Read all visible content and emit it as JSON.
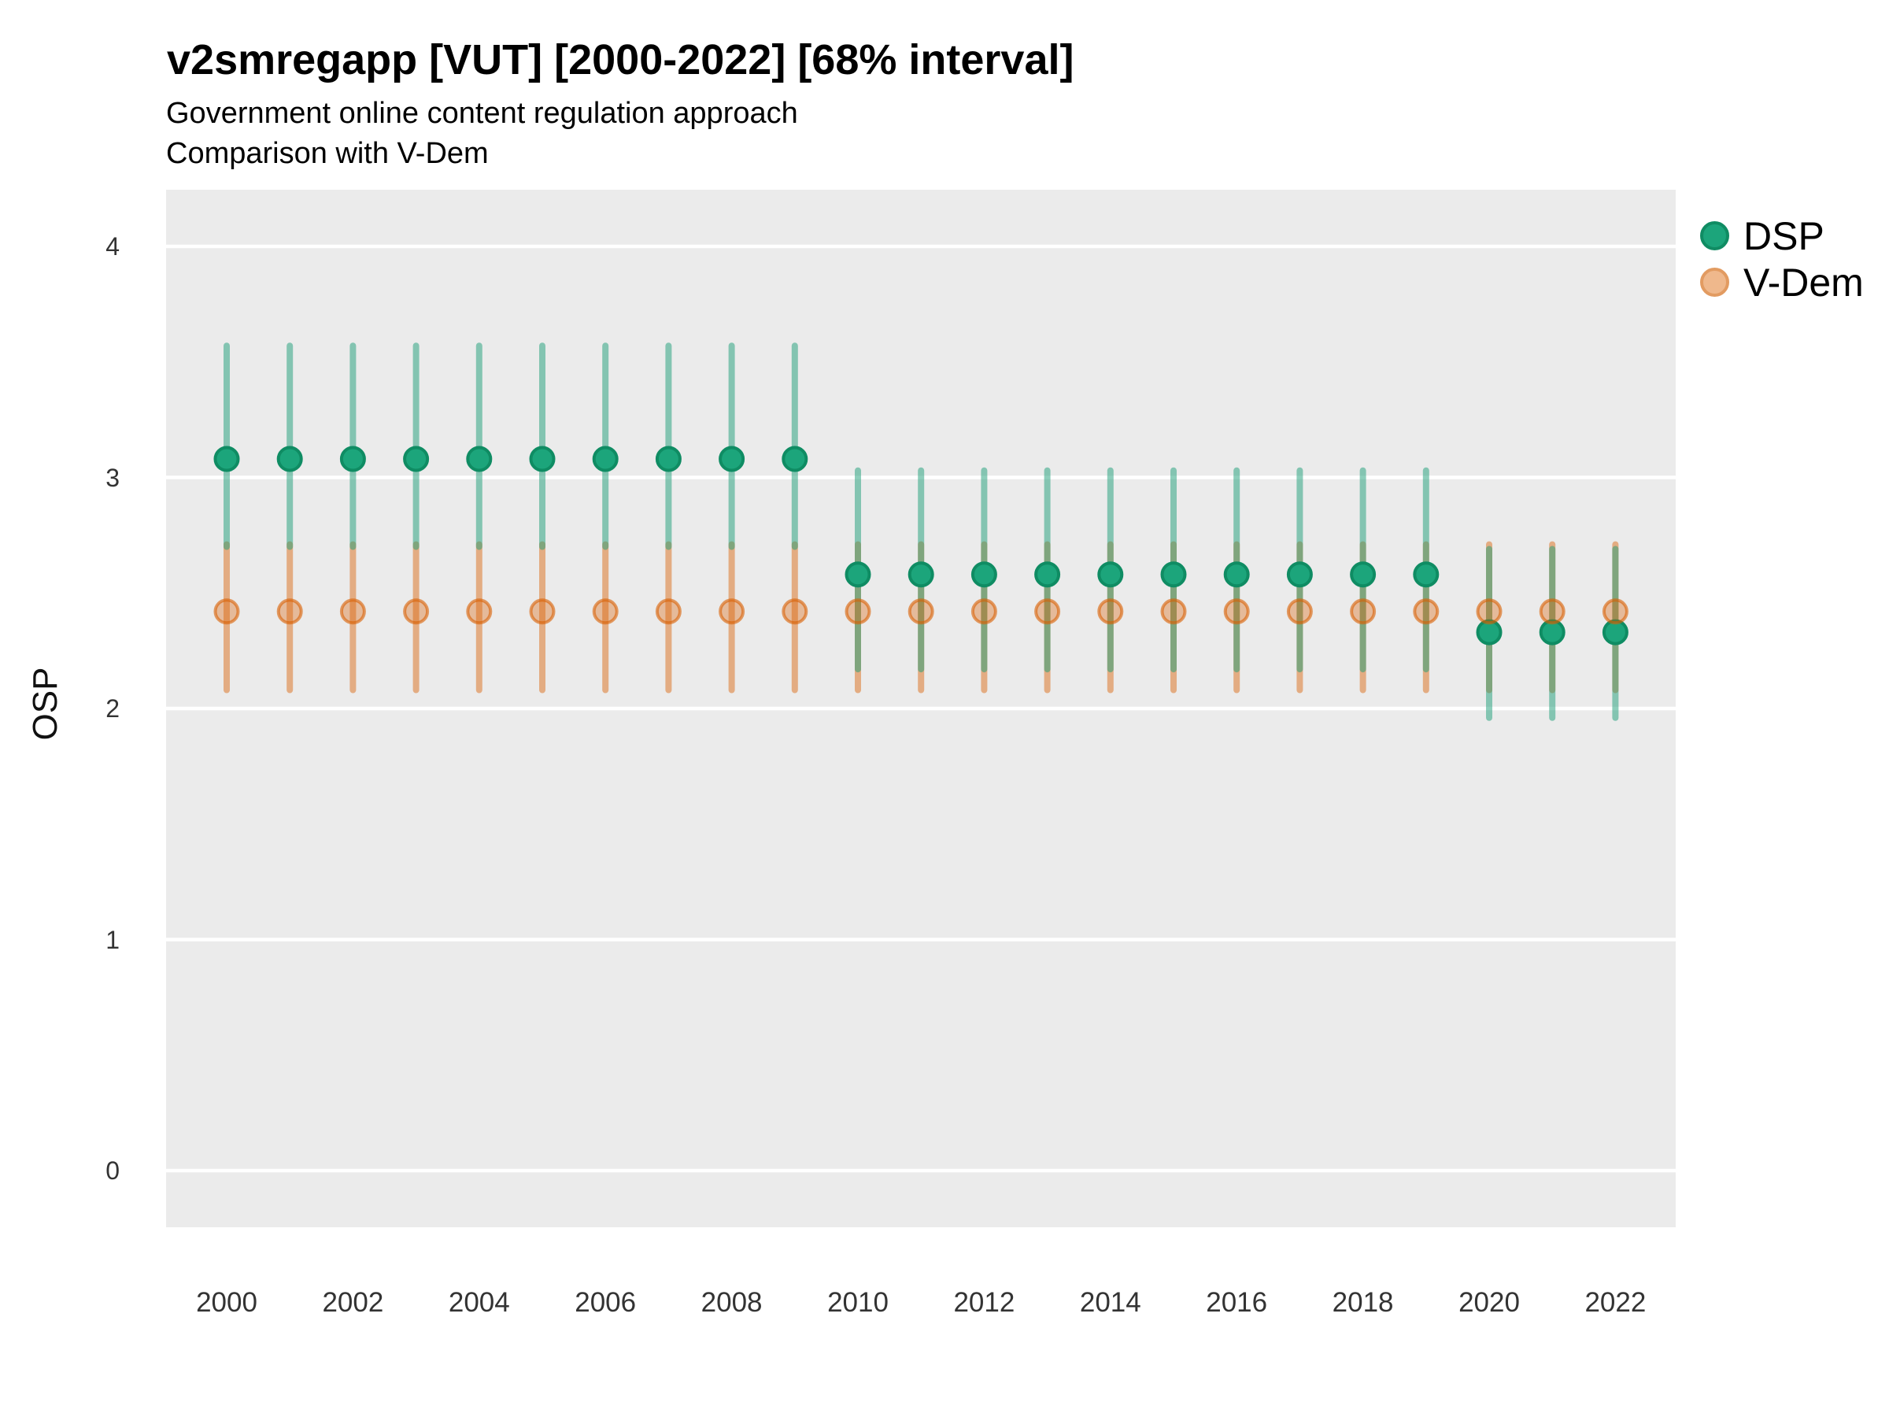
{
  "header": {
    "title": "v2smregapp [VUT] [2000-2022] [68% interval]",
    "subtitle": "Government online content regulation approach",
    "caption": "Comparison with V-Dem"
  },
  "axes": {
    "y_title": "OSP",
    "y_tick_labels": [
      "0",
      "1",
      "2",
      "3",
      "4"
    ],
    "x_tick_labels": [
      "2000",
      "2002",
      "2004",
      "2006",
      "2008",
      "2010",
      "2012",
      "2014",
      "2016",
      "2018",
      "2020",
      "2022"
    ]
  },
  "legend": {
    "items": [
      {
        "label": "DSP",
        "color": "#1B9E77"
      },
      {
        "label": "V-Dem",
        "color": "#D95F02"
      }
    ]
  },
  "colors": {
    "panel_background": "#EBEBEB",
    "gridline": "#FFFFFF",
    "dsp_point_fill": "#1CA57B",
    "dsp_point_stroke": "#0F8C63",
    "dsp_interval": "rgba(27,158,119,0.5)",
    "vdem_point_fill": "rgba(217,95,2,0.35)",
    "vdem_point_stroke": "rgba(217,95,2,0.6)",
    "vdem_interval": "rgba(217,95,2,0.45)"
  },
  "chart_data": {
    "type": "scatter",
    "title": "v2smregapp [VUT] [2000-2022] [68% interval]",
    "subtitle": "Government online content regulation approach",
    "caption": "Comparison with V-Dem",
    "xlabel": "",
    "ylabel": "OSP",
    "interval_label": "68% interval",
    "legend_position": "right-top",
    "grid": "horizontal white major gridlines on grey panel",
    "ylim": [
      -0.25,
      4.25
    ],
    "xlim": [
      1999,
      2023
    ],
    "yticks": [
      0,
      1,
      2,
      3,
      4
    ],
    "xticks": [
      2000,
      2002,
      2004,
      2006,
      2008,
      2010,
      2012,
      2014,
      2016,
      2018,
      2020,
      2022
    ],
    "x": [
      2000,
      2001,
      2002,
      2003,
      2004,
      2005,
      2006,
      2007,
      2008,
      2009,
      2010,
      2011,
      2012,
      2013,
      2014,
      2015,
      2016,
      2017,
      2018,
      2019,
      2020,
      2021,
      2022
    ],
    "series": [
      {
        "name": "DSP",
        "color": "#1B9E77",
        "estimate": [
          3.08,
          3.08,
          3.08,
          3.08,
          3.08,
          3.08,
          3.08,
          3.08,
          3.08,
          3.08,
          2.58,
          2.58,
          2.58,
          2.58,
          2.58,
          2.58,
          2.58,
          2.58,
          2.58,
          2.58,
          2.33,
          2.33,
          2.33
        ],
        "lower": [
          2.7,
          2.7,
          2.7,
          2.7,
          2.7,
          2.7,
          2.7,
          2.7,
          2.7,
          2.7,
          2.17,
          2.17,
          2.17,
          2.17,
          2.17,
          2.17,
          2.17,
          2.17,
          2.17,
          2.17,
          1.96,
          1.96,
          1.96
        ],
        "upper": [
          3.57,
          3.57,
          3.57,
          3.57,
          3.57,
          3.57,
          3.57,
          3.57,
          3.57,
          3.57,
          3.03,
          3.03,
          3.03,
          3.03,
          3.03,
          3.03,
          3.03,
          3.03,
          3.03,
          3.03,
          2.69,
          2.69,
          2.69
        ]
      },
      {
        "name": "V-Dem",
        "color": "#D95F02",
        "estimate": [
          2.42,
          2.42,
          2.42,
          2.42,
          2.42,
          2.42,
          2.42,
          2.42,
          2.42,
          2.42,
          2.42,
          2.42,
          2.42,
          2.42,
          2.42,
          2.42,
          2.42,
          2.42,
          2.42,
          2.42,
          2.42,
          2.42,
          2.42
        ],
        "lower": [
          2.08,
          2.08,
          2.08,
          2.08,
          2.08,
          2.08,
          2.08,
          2.08,
          2.08,
          2.08,
          2.08,
          2.08,
          2.08,
          2.08,
          2.08,
          2.08,
          2.08,
          2.08,
          2.08,
          2.08,
          2.08,
          2.08,
          2.08
        ],
        "upper": [
          2.71,
          2.71,
          2.71,
          2.71,
          2.71,
          2.71,
          2.71,
          2.71,
          2.71,
          2.71,
          2.71,
          2.71,
          2.71,
          2.71,
          2.71,
          2.71,
          2.71,
          2.71,
          2.71,
          2.71,
          2.71,
          2.71,
          2.71
        ]
      }
    ]
  }
}
